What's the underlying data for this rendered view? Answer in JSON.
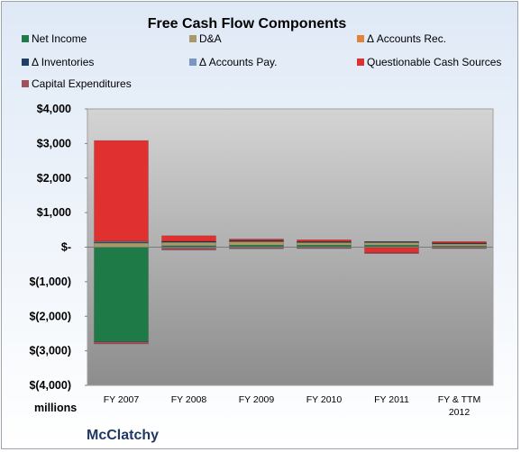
{
  "chart_data": {
    "type": "bar",
    "stacked": true,
    "title": "Free Cash Flow Components",
    "units_label": "millions",
    "company": "McClatchy",
    "categories": [
      "FY 2007",
      "FY 2008",
      "FY 2009",
      "FY 2010",
      "FY 2011",
      "FY & TTM 2012"
    ],
    "ylim": [
      -4000,
      4000
    ],
    "yticks": [
      {
        "value": 4000,
        "label": "$4,000"
      },
      {
        "value": 3000,
        "label": "$3,000"
      },
      {
        "value": 2000,
        "label": "$2,000"
      },
      {
        "value": 1000,
        "label": "$1,000"
      },
      {
        "value": 0,
        "label": "$-"
      },
      {
        "value": -1000,
        "label": "$(1,000)"
      },
      {
        "value": -2000,
        "label": "$(2,000)"
      },
      {
        "value": -3000,
        "label": "$(3,000)"
      },
      {
        "value": -4000,
        "label": "$(4,000)"
      }
    ],
    "grid": false,
    "legend_position": "top",
    "series": [
      {
        "name": "Net Income",
        "color": "#1e7a46",
        "values": [
          -2736,
          40,
          55,
          55,
          55,
          30
        ]
      },
      {
        "name": "D&A",
        "color": "#a89968",
        "values": [
          120,
          110,
          100,
          95,
          90,
          80
        ]
      },
      {
        "name": "Δ Accounts Rec.",
        "color": "#e0843a",
        "values": [
          30,
          15,
          35,
          10,
          15,
          10
        ]
      },
      {
        "name": "Δ Inventories",
        "color": "#1f3f66",
        "values": [
          5,
          5,
          5,
          3,
          3,
          2
        ]
      },
      {
        "name": "Δ Accounts Pay.",
        "color": "#7b96c0",
        "values": [
          20,
          -30,
          -20,
          -15,
          -10,
          -15
        ]
      },
      {
        "name": "Questionable Cash Sources",
        "color": "#e03030",
        "values": [
          2910,
          160,
          40,
          50,
          -150,
          40
        ]
      },
      {
        "name": "Capital Expenditures",
        "color": "#a0525a",
        "values": [
          -65,
          -55,
          -20,
          -15,
          -15,
          -15
        ]
      }
    ]
  }
}
